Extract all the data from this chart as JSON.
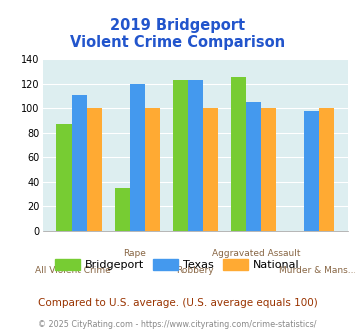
{
  "title_line1": "2019 Bridgeport",
  "title_line2": "Violent Crime Comparison",
  "categories": [
    "All Violent Crime",
    "Rape",
    "Robbery",
    "Aggravated Assault",
    "Murder & Mans..."
  ],
  "bridgeport": [
    87,
    35,
    123,
    126,
    0
  ],
  "texas": [
    111,
    120,
    123,
    105,
    98
  ],
  "national": [
    100,
    100,
    100,
    100,
    100
  ],
  "bridgeport_color": "#77cc33",
  "texas_color": "#4499ee",
  "national_color": "#ffaa33",
  "title_color": "#2255cc",
  "bg_color": "#ddeef0",
  "ylim": [
    0,
    140
  ],
  "yticks": [
    0,
    20,
    40,
    60,
    80,
    100,
    120,
    140
  ],
  "footnote": "Compared to U.S. average. (U.S. average equals 100)",
  "copyright": "© 2025 CityRating.com - https://www.cityrating.com/crime-statistics/",
  "footnote_color": "#993300",
  "copyright_color": "#888888",
  "legend_labels": [
    "Bridgeport",
    "Texas",
    "National"
  ],
  "label_color": "#886644"
}
